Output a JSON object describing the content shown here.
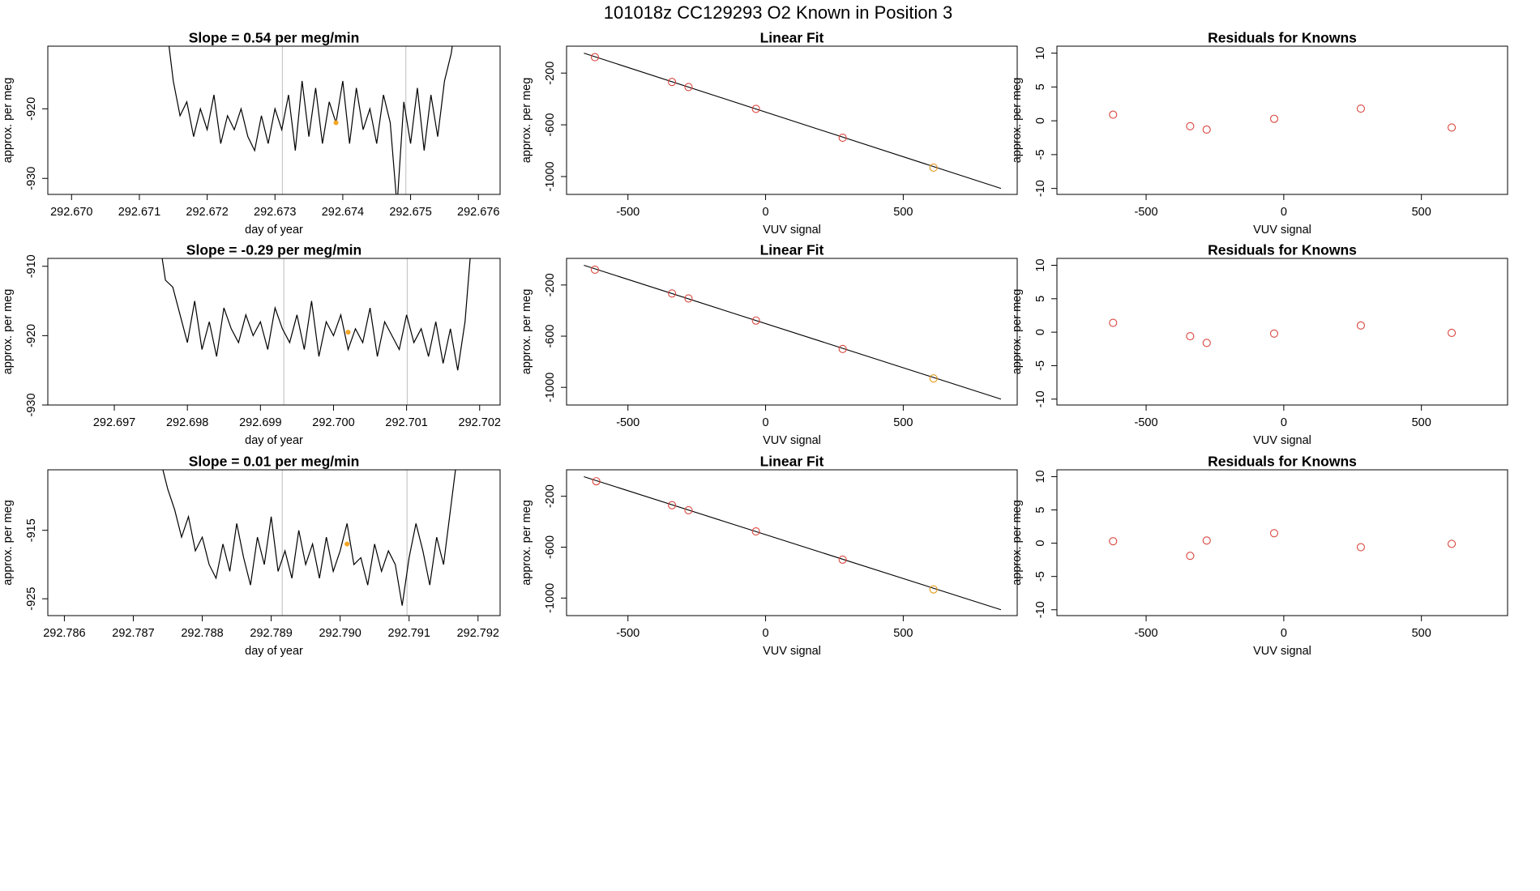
{
  "title": "101018z      CC129293   O2 Known in Position  3",
  "chart_data": [
    {
      "type": "line",
      "title": "Slope =  0.54  per meg/min",
      "xlabel": "day of year",
      "ylabel": "approx. per meg",
      "x": [
        292.6714,
        292.6715,
        292.6716,
        292.6717,
        292.6718,
        292.6719,
        292.672,
        292.6721,
        292.6722,
        292.6723,
        292.6724,
        292.6725,
        292.6726,
        292.6727,
        292.6728,
        292.6729,
        292.673,
        292.6731,
        292.6732,
        292.6733,
        292.6734,
        292.6735,
        292.6736,
        292.6737,
        292.6738,
        292.6739,
        292.674,
        292.6741,
        292.6742,
        292.6743,
        292.6744,
        292.6745,
        292.6746,
        292.6747,
        292.6748,
        292.6749,
        292.675,
        292.6751,
        292.6752,
        292.6753,
        292.6754,
        292.6755,
        292.6756,
        292.6757
      ],
      "series": [
        {
          "color": "#000000",
          "values": [
            -908,
            -916,
            -921,
            -919,
            -924,
            -920,
            -923,
            -918,
            -925,
            -921,
            -923,
            -920,
            -924,
            -926,
            -921,
            -925,
            -920,
            -923,
            -918,
            -926,
            -916,
            -924,
            -917,
            -925,
            -919,
            -922,
            -916,
            -925,
            -917,
            -923,
            -920,
            -925,
            -918,
            -922,
            -934,
            -919,
            -925,
            -917,
            -926,
            -918,
            -924,
            -916,
            -912,
            -905
          ]
        }
      ],
      "vlines": {
        "x": [
          292.67311,
          292.67493
        ],
        "color": "#c8c8c8"
      },
      "points": {
        "x": [
          292.6739
        ],
        "y": [
          -922
        ],
        "color": "#f5a623"
      },
      "xlim": [
        292.66965,
        292.67632
      ],
      "ylim": [
        -932.3,
        -911
      ],
      "xticks": [
        {
          "value": 292.67,
          "label": "292.670"
        },
        292.671,
        292.672,
        292.673,
        292.674,
        292.675,
        292.676
      ],
      "yticks": [
        -920,
        -930
      ]
    },
    {
      "type": "scatter",
      "title": "Linear Fit",
      "xlabel": "VUV signal",
      "ylabel": "approx. per meg",
      "x": [
        -620,
        -340,
        -280,
        -35,
        280,
        610
      ],
      "values": [
        -77,
        -269,
        -308,
        -477,
        -700,
        -931
      ],
      "point_colors": [
        "#d9453d",
        "#d9453d",
        "#d9453d",
        "#d9453d",
        "#d9453d",
        "#e69a1a"
      ],
      "fit_line": {
        "x": [
          -660,
          855
        ],
        "y": [
          -46,
          -1092
        ],
        "color": "#000000"
      },
      "xlim": [
        -723,
        914
      ],
      "ylim": [
        -1138,
        8
      ],
      "xticks": [
        -500,
        0,
        500
      ],
      "yticks": [
        -200,
        -600,
        -1000
      ]
    },
    {
      "type": "scatter",
      "title": "Residuals for Knowns",
      "xlabel": "VUV signal",
      "ylabel": "approx. per meg",
      "x": [
        -620,
        -340,
        -280,
        -35,
        280,
        610
      ],
      "values": [
        0.9,
        -0.8,
        -1.3,
        0.3,
        1.8,
        -1
      ],
      "color": "#d9453d",
      "xlim": [
        -824,
        813
      ],
      "ylim": [
        -10.88,
        11.03
      ],
      "xticks": [
        -500,
        0,
        500
      ],
      "yticks": [
        -10,
        -5,
        0,
        5,
        10
      ]
    },
    {
      "type": "line",
      "title": "Slope =  -0.29  per meg/min",
      "xlabel": "day of year",
      "ylabel": "approx. per meg",
      "x": [
        292.6976,
        292.6977,
        292.6978,
        292.6979,
        292.698,
        292.6981,
        292.6982,
        292.6983,
        292.6984,
        292.6985,
        292.6986,
        292.6987,
        292.6988,
        292.6989,
        292.699,
        292.6991,
        292.6992,
        292.6993,
        292.6994,
        292.6995,
        292.6996,
        292.6997,
        292.6998,
        292.6999,
        292.7,
        292.7001,
        292.7002,
        292.7003,
        292.7004,
        292.7005,
        292.7006,
        292.7007,
        292.7008,
        292.7009,
        292.701,
        292.7011,
        292.7012,
        292.7013,
        292.7014,
        292.7015,
        292.7016,
        292.7017,
        292.7018,
        292.7019
      ],
      "series": [
        {
          "color": "#000000",
          "values": [
            -905,
            -912,
            -913,
            -917,
            -921,
            -915,
            -922,
            -918,
            -923,
            -916,
            -919,
            -921,
            -917,
            -920,
            -918,
            -922,
            -916,
            -919,
            -921,
            -917,
            -922,
            -915,
            -923,
            -918,
            -920,
            -917,
            -922,
            -919,
            -921,
            -916,
            -923,
            -918,
            -920,
            -922,
            -917,
            -921,
            -919,
            -923,
            -918,
            -924,
            -919,
            -925,
            -918,
            -905
          ]
        }
      ],
      "vlines": {
        "x": [
          292.69932,
          292.70101
        ],
        "color": "#c8c8c8"
      },
      "points": {
        "x": [
          292.7002
        ],
        "y": [
          -919.5
        ],
        "color": "#f5a623"
      },
      "xlim": [
        292.69609,
        292.70228
      ],
      "ylim": [
        -930,
        -908.86
      ],
      "xticks": [
        292.697,
        292.698,
        292.699,
        {
          "value": 292.7,
          "label": "292.700"
        },
        292.701,
        292.702
      ],
      "yticks": [
        -910,
        -920,
        -930
      ]
    },
    {
      "type": "scatter",
      "title": "Linear Fit",
      "xlabel": "VUV signal",
      "ylabel": "approx. per meg",
      "x": [
        -620,
        -340,
        -280,
        -35,
        280,
        610
      ],
      "values": [
        -80,
        -266,
        -305,
        -478,
        -700,
        -930
      ],
      "point_colors": [
        "#d9453d",
        "#d9453d",
        "#d9453d",
        "#d9453d",
        "#d9453d",
        "#e69a1a"
      ],
      "fit_line": {
        "x": [
          -660,
          855
        ],
        "y": [
          -46,
          -1092
        ],
        "color": "#000000"
      },
      "xlim": [
        -723,
        914
      ],
      "ylim": [
        -1138,
        8
      ],
      "xticks": [
        -500,
        0,
        500
      ],
      "yticks": [
        -200,
        -600,
        -1000
      ]
    },
    {
      "type": "scatter",
      "title": "Residuals for Knowns",
      "xlabel": "VUV signal",
      "ylabel": "approx. per meg",
      "x": [
        -620,
        -340,
        -280,
        -35,
        280,
        610
      ],
      "values": [
        1.4,
        -0.6,
        -1.6,
        -0.2,
        1.0,
        -0.1
      ],
      "color": "#d9453d",
      "xlim": [
        -824,
        813
      ],
      "ylim": [
        -10.88,
        11.03
      ],
      "xticks": [
        -500,
        0,
        500
      ],
      "yticks": [
        -10,
        -5,
        0,
        5,
        10
      ]
    },
    {
      "type": "line",
      "title": "Slope =  0.01  per meg/min",
      "xlabel": "day of year",
      "ylabel": "approx. per meg",
      "x": [
        292.7874,
        292.7875,
        292.7876,
        292.7877,
        292.7878,
        292.7879,
        292.788,
        292.7881,
        292.7882,
        292.7883,
        292.7884,
        292.7885,
        292.7886,
        292.7887,
        292.7888,
        292.7889,
        292.789,
        292.7891,
        292.7892,
        292.7893,
        292.7894,
        292.7895,
        292.7896,
        292.7897,
        292.7898,
        292.7899,
        292.79,
        292.7901,
        292.7902,
        292.7903,
        292.7904,
        292.7905,
        292.7906,
        292.7907,
        292.7908,
        292.7909,
        292.791,
        292.7911,
        292.7912,
        292.7913,
        292.7914,
        292.7915,
        292.7916,
        292.7917
      ],
      "series": [
        {
          "color": "#000000",
          "values": [
            -905,
            -909,
            -912,
            -916,
            -913,
            -918,
            -916,
            -920,
            -922,
            -917,
            -921,
            -914,
            -919,
            -923,
            -916,
            -920,
            -913,
            -921,
            -918,
            -922,
            -915,
            -920,
            -917,
            -922,
            -916,
            -921,
            -918,
            -914,
            -920,
            -919,
            -923,
            -917,
            -921,
            -918,
            -920,
            -926,
            -919,
            -914,
            -918,
            -923,
            -916,
            -920,
            -912,
            -904
          ]
        }
      ],
      "vlines": {
        "x": [
          292.78916,
          292.79097
        ],
        "color": "#c8c8c8"
      },
      "points": {
        "x": [
          292.7901
        ],
        "y": [
          -917
        ],
        "color": "#f5a623"
      },
      "xlim": [
        292.78576,
        292.79232
      ],
      "ylim": [
        -927.46,
        -906.16
      ],
      "xticks": [
        292.786,
        292.787,
        292.788,
        292.789,
        {
          "value": 292.79,
          "label": "292.790"
        },
        292.791,
        292.792
      ],
      "yticks": [
        -915,
        -925
      ]
    },
    {
      "type": "scatter",
      "title": "Linear Fit",
      "xlabel": "VUV signal",
      "ylabel": "approx. per meg",
      "x": [
        -615,
        -340,
        -280,
        -35,
        280,
        610
      ],
      "values": [
        -82,
        -270,
        -310,
        -476,
        -698,
        -932
      ],
      "point_colors": [
        "#d9453d",
        "#d9453d",
        "#d9453d",
        "#d9453d",
        "#d9453d",
        "#e69a1a"
      ],
      "fit_line": {
        "x": [
          -660,
          855
        ],
        "y": [
          -46,
          -1092
        ],
        "color": "#000000"
      },
      "xlim": [
        -723,
        914
      ],
      "ylim": [
        -1138,
        8
      ],
      "xticks": [
        -500,
        0,
        500
      ],
      "yticks": [
        -200,
        -600,
        -1000
      ]
    },
    {
      "type": "scatter",
      "title": "Residuals for Knowns",
      "xlabel": "VUV signal",
      "ylabel": "approx. per meg",
      "x": [
        -620,
        -340,
        -280,
        -35,
        280,
        610
      ],
      "values": [
        0.3,
        -1.9,
        0.4,
        1.5,
        -0.6,
        -0.1
      ],
      "color": "#d9453d",
      "xlim": [
        -824,
        813
      ],
      "ylim": [
        -10.88,
        11.03
      ],
      "xticks": [
        -500,
        0,
        500
      ],
      "yticks": [
        -10,
        -5,
        0,
        5,
        10
      ]
    }
  ]
}
